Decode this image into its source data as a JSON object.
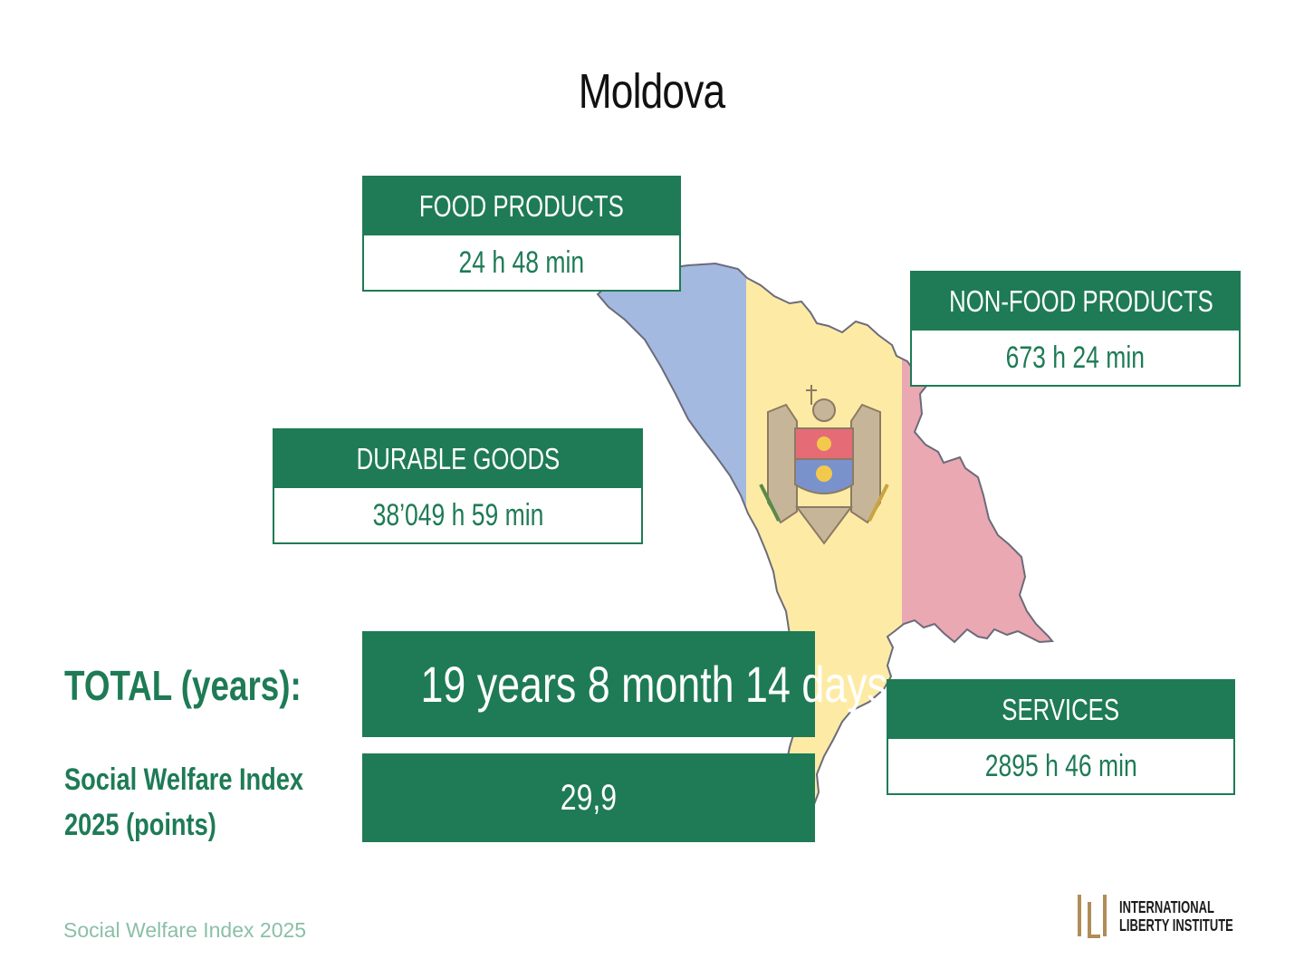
{
  "title": "Moldova",
  "cards": {
    "food": {
      "label": "FOOD PRODUCTS",
      "value": "24 h 48 min"
    },
    "nonfood": {
      "label": "NON-FOOD PRODUCTS",
      "value": "673 h 24 min"
    },
    "durable": {
      "label": "DURABLE GOODS",
      "value": "38’049 h 59 min"
    },
    "services": {
      "label": "SERVICES",
      "value": "2895 h 46 min"
    }
  },
  "total": {
    "label": "TOTAL (years):",
    "value": "19 years 8 month 14 days"
  },
  "swi": {
    "label_line1": "Social Welfare Index",
    "label_line2": "2025 (points)",
    "value": "29,9"
  },
  "footer": "Social Welfare Index 2025",
  "logo": {
    "line1": "INTERNATIONAL",
    "line2": "LIBERTY INSTITUTE"
  },
  "colors": {
    "brand_green": "#1e7b55",
    "flag_blue": "#a3b9e0",
    "flag_yellow": "#fdeba5",
    "flag_red": "#eaa8b3",
    "logo_gold": "#b08d57"
  },
  "map_icon": "moldova-map-flag-icon"
}
